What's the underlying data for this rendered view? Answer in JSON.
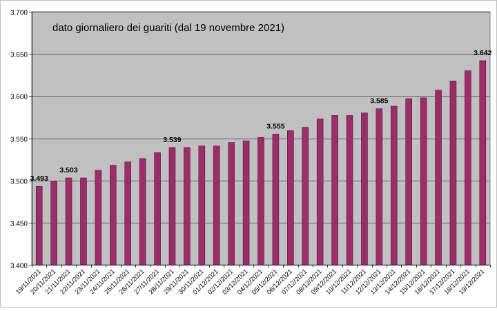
{
  "chart_data": {
    "type": "bar",
    "title": "dato giornaliero dei guariti (dal 19 novembre 2021)",
    "xlabel": "",
    "ylabel": "",
    "ylim": [
      3400,
      3700
    ],
    "yticks": [
      3400,
      3450,
      3500,
      3550,
      3600,
      3650,
      3700
    ],
    "ytick_labels": [
      "3.400",
      "3.450",
      "3.500",
      "3.550",
      "3.600",
      "3.650",
      "3.700"
    ],
    "grid": true,
    "categories": [
      "19/11/2021",
      "20/11/2021",
      "21/11/2021",
      "22/11/2021",
      "23/11/2021",
      "24/11/2021",
      "25/11/2021",
      "26/11/2021",
      "27/11/2021",
      "28/11/2021",
      "29/11/2021",
      "30/11/2021",
      "01/12/2021",
      "02/12/2021",
      "03/12/2021",
      "04/12/2021",
      "05/12/2021",
      "06/12/2021",
      "07/12/2021",
      "08/12/2021",
      "09/12/2021",
      "10/12/2021",
      "11/12/2021",
      "12/12/2021",
      "13/12/2021",
      "14/12/2021",
      "15/12/2021",
      "16/12/2021",
      "17/12/2021",
      "18/12/2021",
      "19/12/2021"
    ],
    "values": [
      3493,
      3499,
      3503,
      3503,
      3512,
      3518,
      3522,
      3526,
      3533,
      3539,
      3539,
      3541,
      3541,
      3545,
      3547,
      3551,
      3555,
      3559,
      3563,
      3573,
      3577,
      3577,
      3580,
      3585,
      3588,
      3597,
      3598,
      3607,
      3618,
      3630,
      3642
    ],
    "data_labels": [
      {
        "index": 0,
        "text": "3.493"
      },
      {
        "index": 2,
        "text": "3.503"
      },
      {
        "index": 9,
        "text": "3.539"
      },
      {
        "index": 16,
        "text": "3.555"
      },
      {
        "index": 23,
        "text": "3.585"
      },
      {
        "index": 30,
        "text": "3.642"
      }
    ],
    "colors": {
      "bar": "#9b2d6b",
      "bar_edge": "#5e1440",
      "plot_bg": "#c0c0c0",
      "gridline": "#000000",
      "frame": "#808080"
    }
  }
}
